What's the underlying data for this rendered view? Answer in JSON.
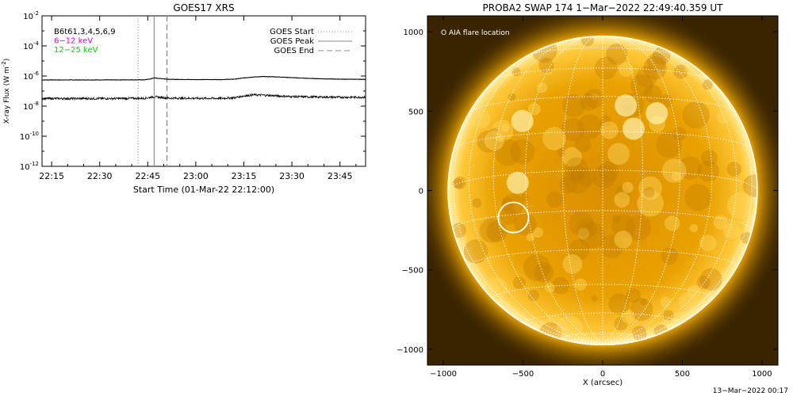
{
  "chart_data": [
    {
      "type": "line",
      "title": "GOES17 XRS",
      "xlabel": "Start Time (01-Mar-22 22:12:00)",
      "ylabel": "X-ray Flux (W m",
      "ylabel_sup": "-2",
      "ylabel_end": ")",
      "yscale": "log",
      "xlim": [
        "22:12",
        "23:53"
      ],
      "ylim": [
        1e-12,
        0.01
      ],
      "x_ticks": [
        "22:15",
        "22:30",
        "22:45",
        "23:00",
        "23:15",
        "23:30",
        "23:45"
      ],
      "y_ticks": [
        {
          "value": 0.01,
          "base": "10",
          "exp": "-2"
        },
        {
          "value": 0.0001,
          "base": "10",
          "exp": "-4"
        },
        {
          "value": 1e-06,
          "base": "10",
          "exp": "-6"
        },
        {
          "value": 1e-08,
          "base": "10",
          "exp": "-8"
        },
        {
          "value": 1e-10,
          "base": "10",
          "exp": "-10"
        },
        {
          "value": 1e-12,
          "base": "10",
          "exp": "-12"
        }
      ],
      "channel_labels": [
        {
          "text": "B6t61,3,4,5,6,9",
          "color": "#000000"
        },
        {
          "text": "6−12  keV",
          "color": "#e000e0"
        },
        {
          "text": "12−25  keV",
          "color": "#00d000"
        }
      ],
      "legend": [
        {
          "text": "GOES Start",
          "style": "dotted"
        },
        {
          "text": "GOES Peak",
          "style": "solid"
        },
        {
          "text": "GOES End",
          "style": "dashed"
        }
      ],
      "legend_placement": "top-right",
      "event_lines": {
        "start": "22:42",
        "peak": "22:47",
        "end": "22:51"
      },
      "series": [
        {
          "channel": "long",
          "x": [
            "22:12",
            "22:30",
            "22:44",
            "22:46",
            "22:47",
            "22:49",
            "22:52",
            "23:00",
            "23:08",
            "23:12",
            "23:15",
            "23:18",
            "23:21",
            "23:24",
            "23:27",
            "23:30",
            "23:35",
            "23:40",
            "23:45",
            "23:53"
          ],
          "y": [
            5.5e-07,
            5.5e-07,
            5.6e-07,
            6.5e-07,
            7.5e-07,
            6.8e-07,
            6e-07,
            5.8e-07,
            5.8e-07,
            6.2e-07,
            7.5e-07,
            8.6e-07,
            9.2e-07,
            9e-07,
            8.4e-07,
            7.8e-07,
            7e-07,
            6.5e-07,
            6.2e-07,
            6e-07
          ]
        },
        {
          "channel": "short",
          "x": [
            "22:12",
            "22:30",
            "22:44",
            "22:46",
            "22:47",
            "22:49",
            "22:52",
            "23:00",
            "23:08",
            "23:12",
            "23:15",
            "23:18",
            "23:21",
            "23:24",
            "23:27",
            "23:30",
            "23:35",
            "23:40",
            "23:45",
            "23:53"
          ],
          "y": [
            3.2e-08,
            3.2e-08,
            3.3e-08,
            3.9e-08,
            4.2e-08,
            3.8e-08,
            3.4e-08,
            3.3e-08,
            3.3e-08,
            3.6e-08,
            4.8e-08,
            5.6e-08,
            5.4e-08,
            5e-08,
            4.6e-08,
            4.3e-08,
            4.1e-08,
            4e-08,
            3.9e-08,
            3.9e-08
          ]
        }
      ]
    },
    {
      "type": "image",
      "title": "PROBA2 SWAP 174   1−Mar−2022 22:49:40.359 UT",
      "xlabel": "X (arcsec)",
      "xlim": [
        -1100,
        1100
      ],
      "ylim": [
        -1100,
        1100
      ],
      "x_ticks": [
        "−1000",
        "−500",
        "0",
        "500",
        "1000"
      ],
      "x_tick_values": [
        -1000,
        -500,
        0,
        500,
        1000
      ],
      "y_ticks": [
        "1000",
        "500",
        "0",
        "−500",
        "−1000"
      ],
      "y_tick_values": [
        1000,
        500,
        0,
        -500,
        -1000
      ],
      "solar_radius_arcsec": 970,
      "legend_text": "O AIA flare location",
      "flare_location": {
        "x": -560,
        "y": -170,
        "radius_arcsec": 95
      },
      "colors": {
        "background": "#3a2400",
        "disk": "#f0b000",
        "limb": "#ffffff"
      }
    }
  ],
  "footer_date": "13−Mar−2022 00:17"
}
